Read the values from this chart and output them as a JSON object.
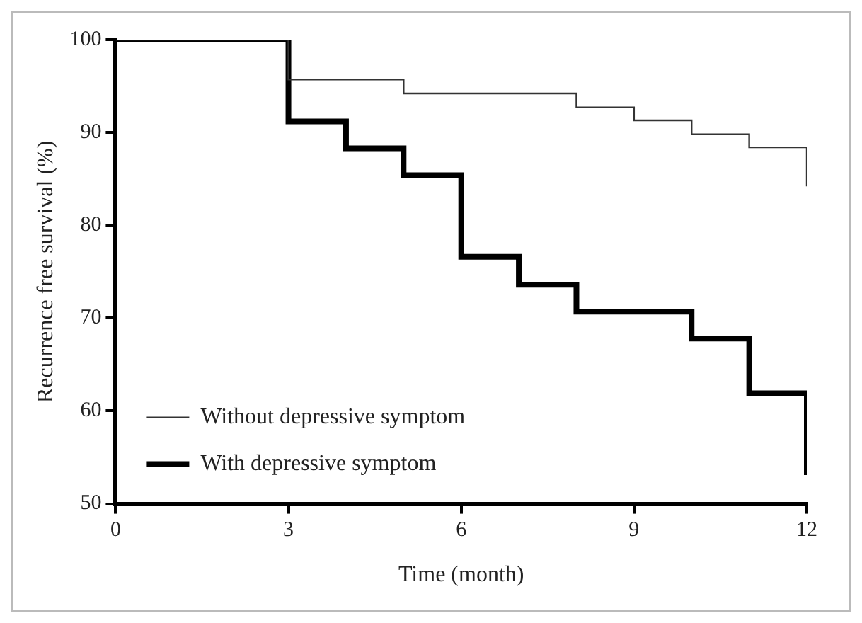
{
  "chart_data": {
    "type": "step",
    "xlabel": "Time (month)",
    "ylabel": "Recurrence free survival (%)",
    "xlim": [
      0,
      12
    ],
    "xticks": [
      0,
      3,
      6,
      9,
      12
    ],
    "ylim": [
      50,
      100
    ],
    "yticks": [
      50,
      60,
      70,
      80,
      90,
      100
    ],
    "grid": false,
    "legend": "bottom left",
    "marker": "none",
    "series": [
      {
        "name": "Without depressive symptom",
        "color": "#333333",
        "x": [
          0,
          3,
          5,
          8,
          9,
          10,
          11,
          12,
          12
        ],
        "values": [
          100,
          95.7,
          94.2,
          92.7,
          91.3,
          89.8,
          88.4,
          88.4,
          84.2
        ]
      },
      {
        "name": "With depressive symptom",
        "color": "#000000",
        "x": [
          0,
          3,
          4,
          5,
          6,
          7,
          8,
          10,
          11,
          12,
          12
        ],
        "values": [
          100,
          91.2,
          88.3,
          85.4,
          76.6,
          73.6,
          70.7,
          67.8,
          61.9,
          61.9,
          53.1
        ]
      }
    ]
  }
}
